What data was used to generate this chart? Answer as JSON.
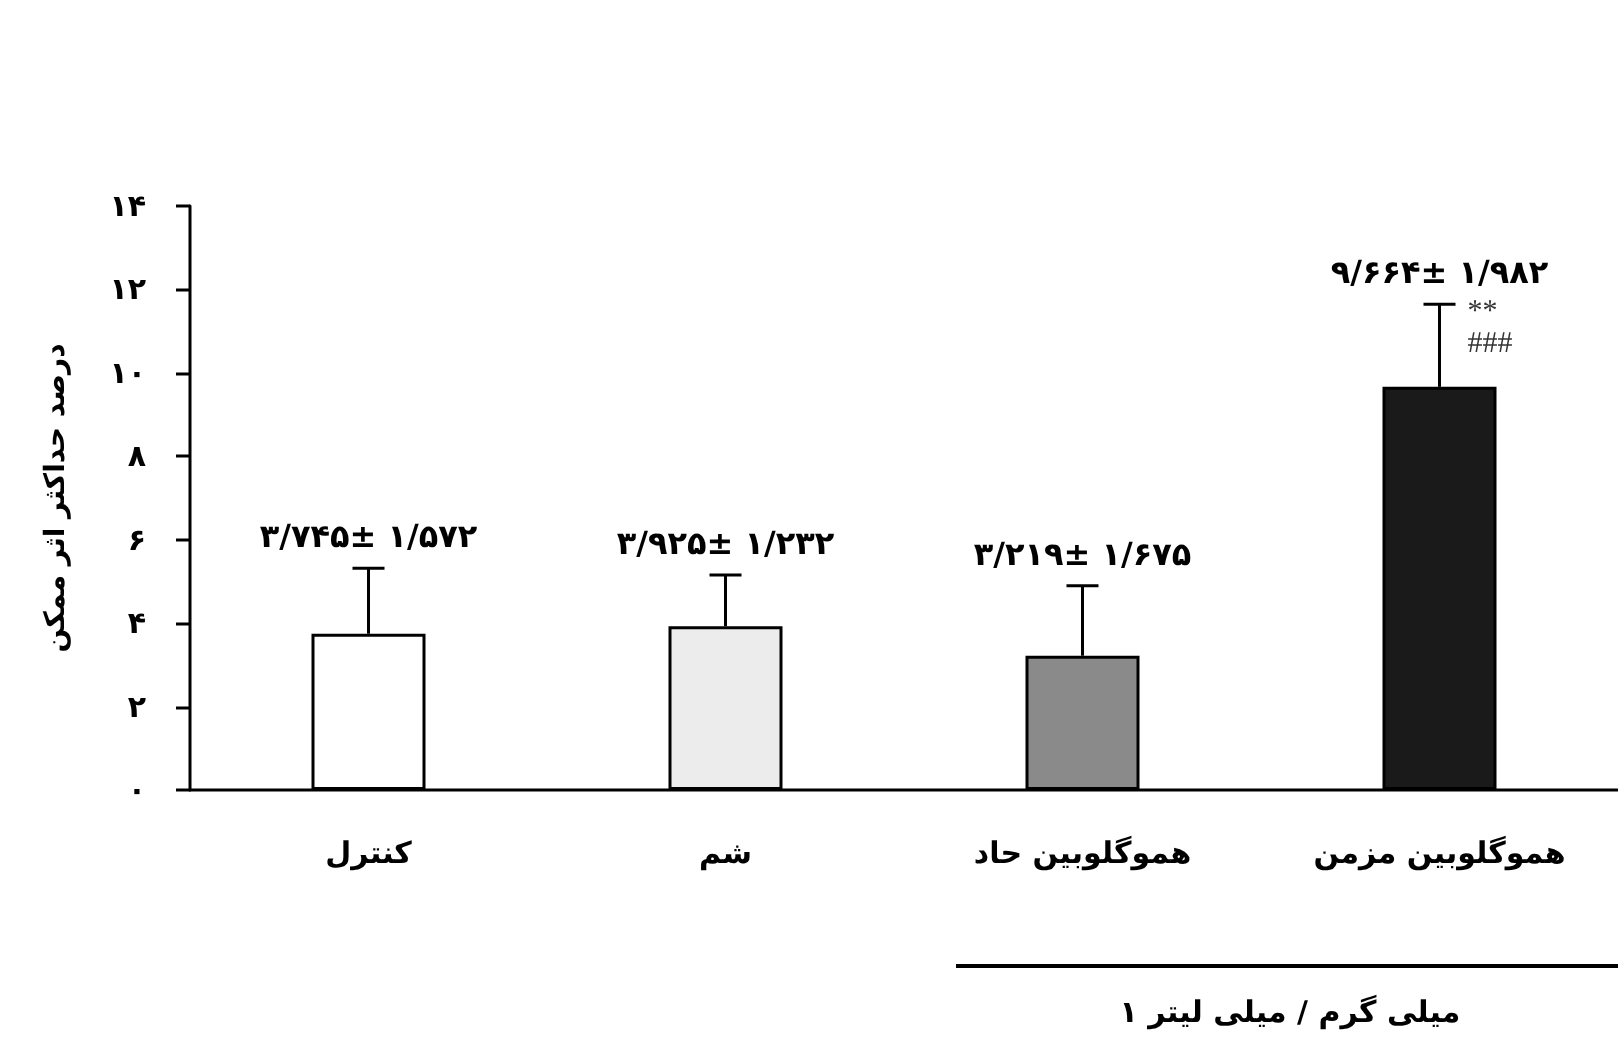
{
  "chart_data": {
    "type": "bar",
    "ylabel": "درصد حداکثر اثر ممکن",
    "categories": [
      "کنترل",
      "شم",
      "هموگلوبین حاد",
      "هموگلوبین مزمن"
    ],
    "values": [
      3.745,
      3.925,
      3.219,
      9.664
    ],
    "colors": [
      "#ffffff",
      "#ececec",
      "#8a8a8a",
      "#1a1a1a"
    ],
    "errors": [
      [
        3.745,
        5.317
      ],
      [
        3.925,
        5.157
      ],
      [
        3.219,
        4.894
      ],
      [
        9.664,
        11.646
      ]
    ],
    "value_labels": [
      "۳/۷۴۵± ۱/۵۷۲",
      "۳/۹۲۵± ۱/۲۳۲",
      "۳/۲۱۹± ۱/۶۷۵",
      "۹/۶۶۴± ۱/۹۸۲"
    ],
    "ylim": [
      0,
      14
    ],
    "yticks": [
      {
        "value": 0,
        "label": "۰"
      },
      {
        "value": 2,
        "label": "۲"
      },
      {
        "value": 4,
        "label": "۴"
      },
      {
        "value": 6,
        "label": "۶"
      },
      {
        "value": 8,
        "label": "۸"
      },
      {
        "value": 10,
        "label": "۱۰"
      },
      {
        "value": 12,
        "label": "۱۲"
      },
      {
        "value": 14,
        "label": "۱۴"
      }
    ],
    "grid": false,
    "annotations": [
      "**",
      "###",
      "۱ میلی گرم / میلی لیتر"
    ]
  }
}
